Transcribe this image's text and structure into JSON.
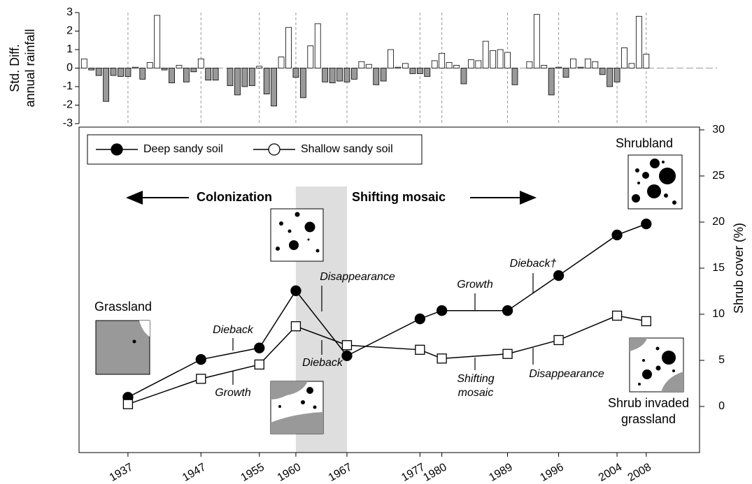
{
  "chart_data": [
    {
      "type": "bar",
      "y_label": [
        "Std. Diff.",
        "annual rainfall"
      ],
      "x": [
        1931,
        1932,
        1933,
        1934,
        1935,
        1936,
        1937,
        1938,
        1939,
        1940,
        1941,
        1942,
        1943,
        1944,
        1945,
        1946,
        1947,
        1948,
        1949,
        1950,
        1951,
        1952,
        1953,
        1954,
        1955,
        1956,
        1957,
        1958,
        1959,
        1960,
        1961,
        1962,
        1963,
        1964,
        1965,
        1966,
        1967,
        1968,
        1969,
        1970,
        1971,
        1972,
        1973,
        1974,
        1975,
        1976,
        1977,
        1978,
        1979,
        1980,
        1981,
        1982,
        1983,
        1984,
        1985,
        1986,
        1987,
        1988,
        1989,
        1990,
        1991,
        1992,
        1993,
        1994,
        1995,
        1996,
        1997,
        1998,
        1999,
        2000,
        2001,
        2002,
        2003,
        2004,
        2005,
        2006,
        2007,
        2008
      ],
      "values": [
        0.5,
        -0.1,
        -0.4,
        -1.8,
        -0.4,
        -0.45,
        -0.45,
        0.05,
        -0.6,
        0.3,
        2.85,
        -0.1,
        -0.8,
        0.15,
        -0.75,
        -0.2,
        0.5,
        -0.65,
        -0.65,
        0.0,
        -0.95,
        -1.45,
        -1.0,
        -0.95,
        0.1,
        -1.4,
        -2.05,
        0.6,
        2.2,
        -0.5,
        -1.6,
        1.2,
        2.4,
        -0.75,
        -0.8,
        -0.7,
        -0.75,
        -0.6,
        0.35,
        0.2,
        -0.9,
        -0.7,
        1.0,
        0.05,
        0.25,
        -0.3,
        -0.3,
        -0.45,
        0.4,
        0.8,
        0.3,
        0.15,
        -0.85,
        0.45,
        0.4,
        1.45,
        0.95,
        1.0,
        0.85,
        -0.9,
        0.0,
        0.35,
        2.9,
        0.15,
        -1.45,
        0.05,
        -0.5,
        0.5,
        0.05,
        0.5,
        0.35,
        -0.35,
        -1.0,
        -0.75,
        1.1,
        0.25,
        2.8,
        0.75
      ],
      "positive_color": "#ffffff",
      "negative_color": "#999999",
      "xlim": [
        1930.3,
        2015.3
      ],
      "ylim": [
        -3,
        3
      ],
      "yticks": [
        -3,
        -2,
        -1,
        0,
        1,
        2,
        3
      ]
    },
    {
      "type": "line",
      "y_label": "Shrub cover (%)",
      "x": [
        1937,
        1947,
        1955,
        1960,
        1967,
        1977,
        1980,
        1989,
        1996,
        2004,
        2008
      ],
      "xlim": [
        1930.3,
        2015.3
      ],
      "xticks": [
        1937,
        1947,
        1955,
        1960,
        1967,
        1977,
        1980,
        1989,
        1996,
        2004,
        2008
      ],
      "ylim": [
        -5,
        30.3
      ],
      "yticks": [
        0,
        5,
        10,
        15,
        20,
        25,
        30
      ],
      "shaded_span": [
        1960,
        1967
      ],
      "legend": "top-left",
      "series": [
        {
          "name": "Deep sandy soil",
          "color": "#000000",
          "marker": "circle",
          "values": [
            1.0,
            5.1,
            6.35,
            12.55,
            5.5,
            9.5,
            10.4,
            10.4,
            14.2,
            18.6,
            19.8
          ]
        },
        {
          "name": "Shallow sandy soil",
          "color": "#000000",
          "marker": "square",
          "values": [
            0.25,
            3.0,
            4.55,
            8.7,
            6.65,
            6.15,
            5.2,
            5.7,
            7.2,
            9.85,
            9.25
          ]
        }
      ],
      "annotations": [
        "Colonization",
        "Shifting mosaic",
        "Disappearance",
        "Dieback",
        "Growth",
        "Dieback",
        "Growth",
        "Dieback†",
        [
          "Shifting",
          "mosaic"
        ],
        "Disappearance",
        "Grassland",
        "Shrubland",
        [
          "Shrub invaded",
          "grassland"
        ]
      ]
    }
  ]
}
